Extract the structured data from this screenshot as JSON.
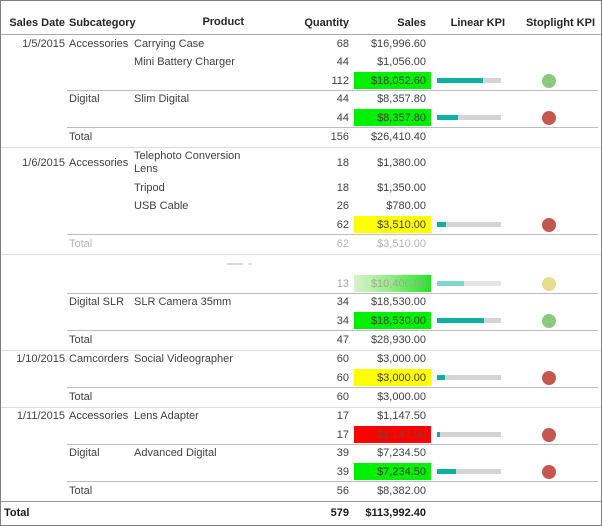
{
  "table": {
    "columns": [
      "Sales Date",
      "Subcategory",
      "Product",
      "Quantity",
      "Sales",
      "Linear KPI",
      "Stoplight KPI"
    ],
    "rows": [
      {
        "type": "detail",
        "date": "1/5/2015",
        "subcat": "Accessories",
        "product": "Carrying Case",
        "qty": "68",
        "sales": "$16,996.60"
      },
      {
        "type": "detail",
        "product": "Mini Battery Charger",
        "qty": "44",
        "sales": "$1,056.00"
      },
      {
        "type": "subtotal",
        "qty": "112",
        "sales": "$18,052.60",
        "sales_bg": "green",
        "bar_pct": 72,
        "light": "green"
      },
      {
        "type": "detail",
        "subcat": "Digital",
        "product": "Slim Digital",
        "qty": "44",
        "sales": "$8,357.80",
        "line": "partial"
      },
      {
        "type": "subtotal",
        "qty": "44",
        "sales": "$8,357.80",
        "sales_bg": "green",
        "bar_pct": 33,
        "light": "red"
      },
      {
        "type": "total",
        "label": "Total",
        "qty": "156",
        "sales": "$26,410.40",
        "line": "partial"
      },
      {
        "type": "detail",
        "date": "1/6/2015",
        "subcat": "Accessories",
        "product": "Telephoto Conversion Lens",
        "qty": "18",
        "sales": "$1,380.00",
        "line": "full",
        "wrap": true
      },
      {
        "type": "detail",
        "product": "Tripod",
        "qty": "18",
        "sales": "$1,350.00"
      },
      {
        "type": "detail",
        "product": "USB Cable",
        "qty": "26",
        "sales": "$780.00"
      },
      {
        "type": "subtotal",
        "qty": "62",
        "sales": "$3,510.00",
        "sales_bg": "yellow",
        "bar_pct": 14,
        "light": "red"
      },
      {
        "type": "total",
        "label": "Total",
        "qty": "62",
        "sales": "$3,510.00",
        "line": "partial",
        "faded": true
      },
      {
        "type": "ghost",
        "line": "full"
      },
      {
        "type": "subtotal",
        "qty": "13",
        "sales": "$10,400.00",
        "sales_bg": "green-fade",
        "bar_pct": 42,
        "light": "yellow",
        "faded": true
      },
      {
        "type": "detail",
        "subcat": "Digital SLR",
        "product": "SLR Camera 35mm",
        "qty": "34",
        "sales": "$18,530.00",
        "line": "partial"
      },
      {
        "type": "subtotal",
        "qty": "34",
        "sales": "$18,530.00",
        "sales_bg": "green",
        "bar_pct": 74,
        "light": "green"
      },
      {
        "type": "total",
        "label": "Total",
        "qty": "47",
        "sales": "$28,930.00",
        "line": "partial"
      },
      {
        "type": "detail",
        "date": "1/10/2015",
        "subcat": "Camcorders",
        "product": "Social Videographer",
        "qty": "60",
        "sales": "$3,000.00",
        "line": "full"
      },
      {
        "type": "subtotal",
        "qty": "60",
        "sales": "$3,000.00",
        "sales_bg": "yellow",
        "bar_pct": 12,
        "light": "red"
      },
      {
        "type": "total",
        "label": "Total",
        "qty": "60",
        "sales": "$3,000.00",
        "line": "partial"
      },
      {
        "type": "detail",
        "date": "1/11/2015",
        "subcat": "Accessories",
        "product": "Lens Adapter",
        "qty": "17",
        "sales": "$1,147.50",
        "line": "full"
      },
      {
        "type": "subtotal",
        "qty": "17",
        "sales": "$1,147.50",
        "sales_bg": "red",
        "bar_pct": 5,
        "light": "red"
      },
      {
        "type": "detail",
        "subcat": "Digital",
        "product": "Advanced Digital",
        "qty": "39",
        "sales": "$7,234.50",
        "line": "partial"
      },
      {
        "type": "subtotal",
        "qty": "39",
        "sales": "$7,234.50",
        "sales_bg": "green",
        "bar_pct": 29,
        "light": "red"
      },
      {
        "type": "total",
        "label": "Total",
        "qty": "56",
        "sales": "$8,382.00",
        "line": "partial"
      },
      {
        "type": "grand",
        "label": "Total",
        "qty": "579",
        "sales": "$113,992.40",
        "line": "grand"
      }
    ]
  },
  "colors": {
    "sales_green": "#00F000",
    "sales_yellow": "#FFFF00",
    "sales_red": "#FF0000",
    "red_cell_text": "#8C3B32",
    "bar_fill": "#0CB1A4",
    "bar_track": "#D4D4D4",
    "light_green": "#8CC87D",
    "light_red": "#C4574F",
    "light_yellow": "#EADC8F"
  }
}
